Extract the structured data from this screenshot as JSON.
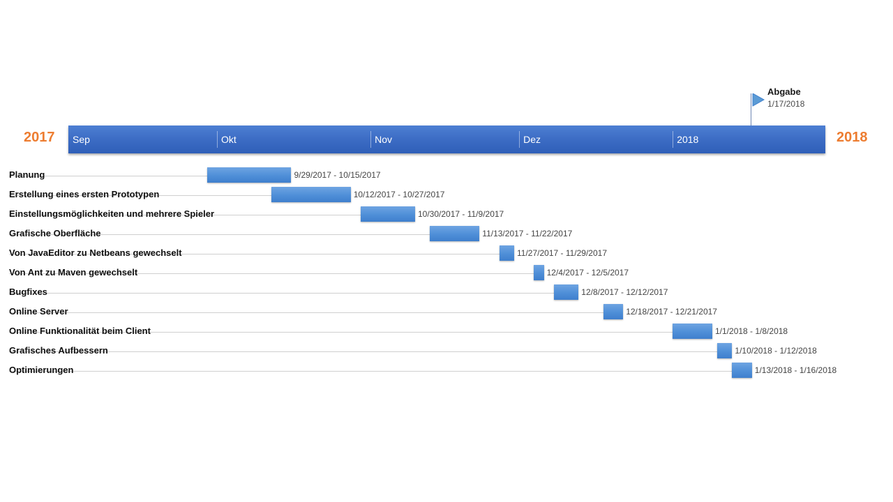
{
  "chart_data": {
    "type": "gantt",
    "years": {
      "start": "2017",
      "end": "2018"
    },
    "axis_labels": [
      "Sep",
      "Okt",
      "Nov",
      "Dez",
      "2018"
    ],
    "milestone": {
      "title": "Abgabe",
      "date": "1/17/2018"
    },
    "tasks": [
      {
        "name": "Planung",
        "start": "2017-09-29",
        "end": "2017-10-15",
        "label": "9/29/2017 - 10/15/2017"
      },
      {
        "name": "Erstellung eines ersten Prototypen",
        "start": "2017-10-12",
        "end": "2017-10-27",
        "label": "10/12/2017 - 10/27/2017"
      },
      {
        "name": "Einstellungsmöglichkeiten und mehrere Spieler",
        "start": "2017-10-30",
        "end": "2017-11-09",
        "label": "10/30/2017 - 11/9/2017"
      },
      {
        "name": "Grafische Oberfläche",
        "start": "2017-11-13",
        "end": "2017-11-22",
        "label": "11/13/2017 - 11/22/2017"
      },
      {
        "name": "Von JavaEditor zu Netbeans gewechselt",
        "start": "2017-11-27",
        "end": "2017-11-29",
        "label": "11/27/2017 - 11/29/2017"
      },
      {
        "name": "Von Ant zu Maven gewechselt",
        "start": "2017-12-04",
        "end": "2017-12-05",
        "label": "12/4/2017 - 12/5/2017"
      },
      {
        "name": "Bugfixes",
        "start": "2017-12-08",
        "end": "2017-12-12",
        "label": "12/8/2017 - 12/12/2017"
      },
      {
        "name": "Online Server",
        "start": "2017-12-18",
        "end": "2017-12-21",
        "label": "12/18/2017 - 12/21/2017"
      },
      {
        "name": "Online Funktionalität beim Client",
        "start": "2018-01-01",
        "end": "2018-01-08",
        "label": "1/1/2018 - 1/8/2018"
      },
      {
        "name": "Grafisches Aufbessern",
        "start": "2018-01-10",
        "end": "2018-01-12",
        "label": "1/10/2018 - 1/12/2018"
      },
      {
        "name": "Optimierungen",
        "start": "2018-01-13",
        "end": "2018-01-16",
        "label": "1/13/2018 - 1/16/2018"
      }
    ]
  },
  "colors": {
    "year": "#ed7d31",
    "timeline": "#3c6cc4",
    "task_bar": "#4f8fd8",
    "milestone_flag": "#5b9bd5"
  }
}
